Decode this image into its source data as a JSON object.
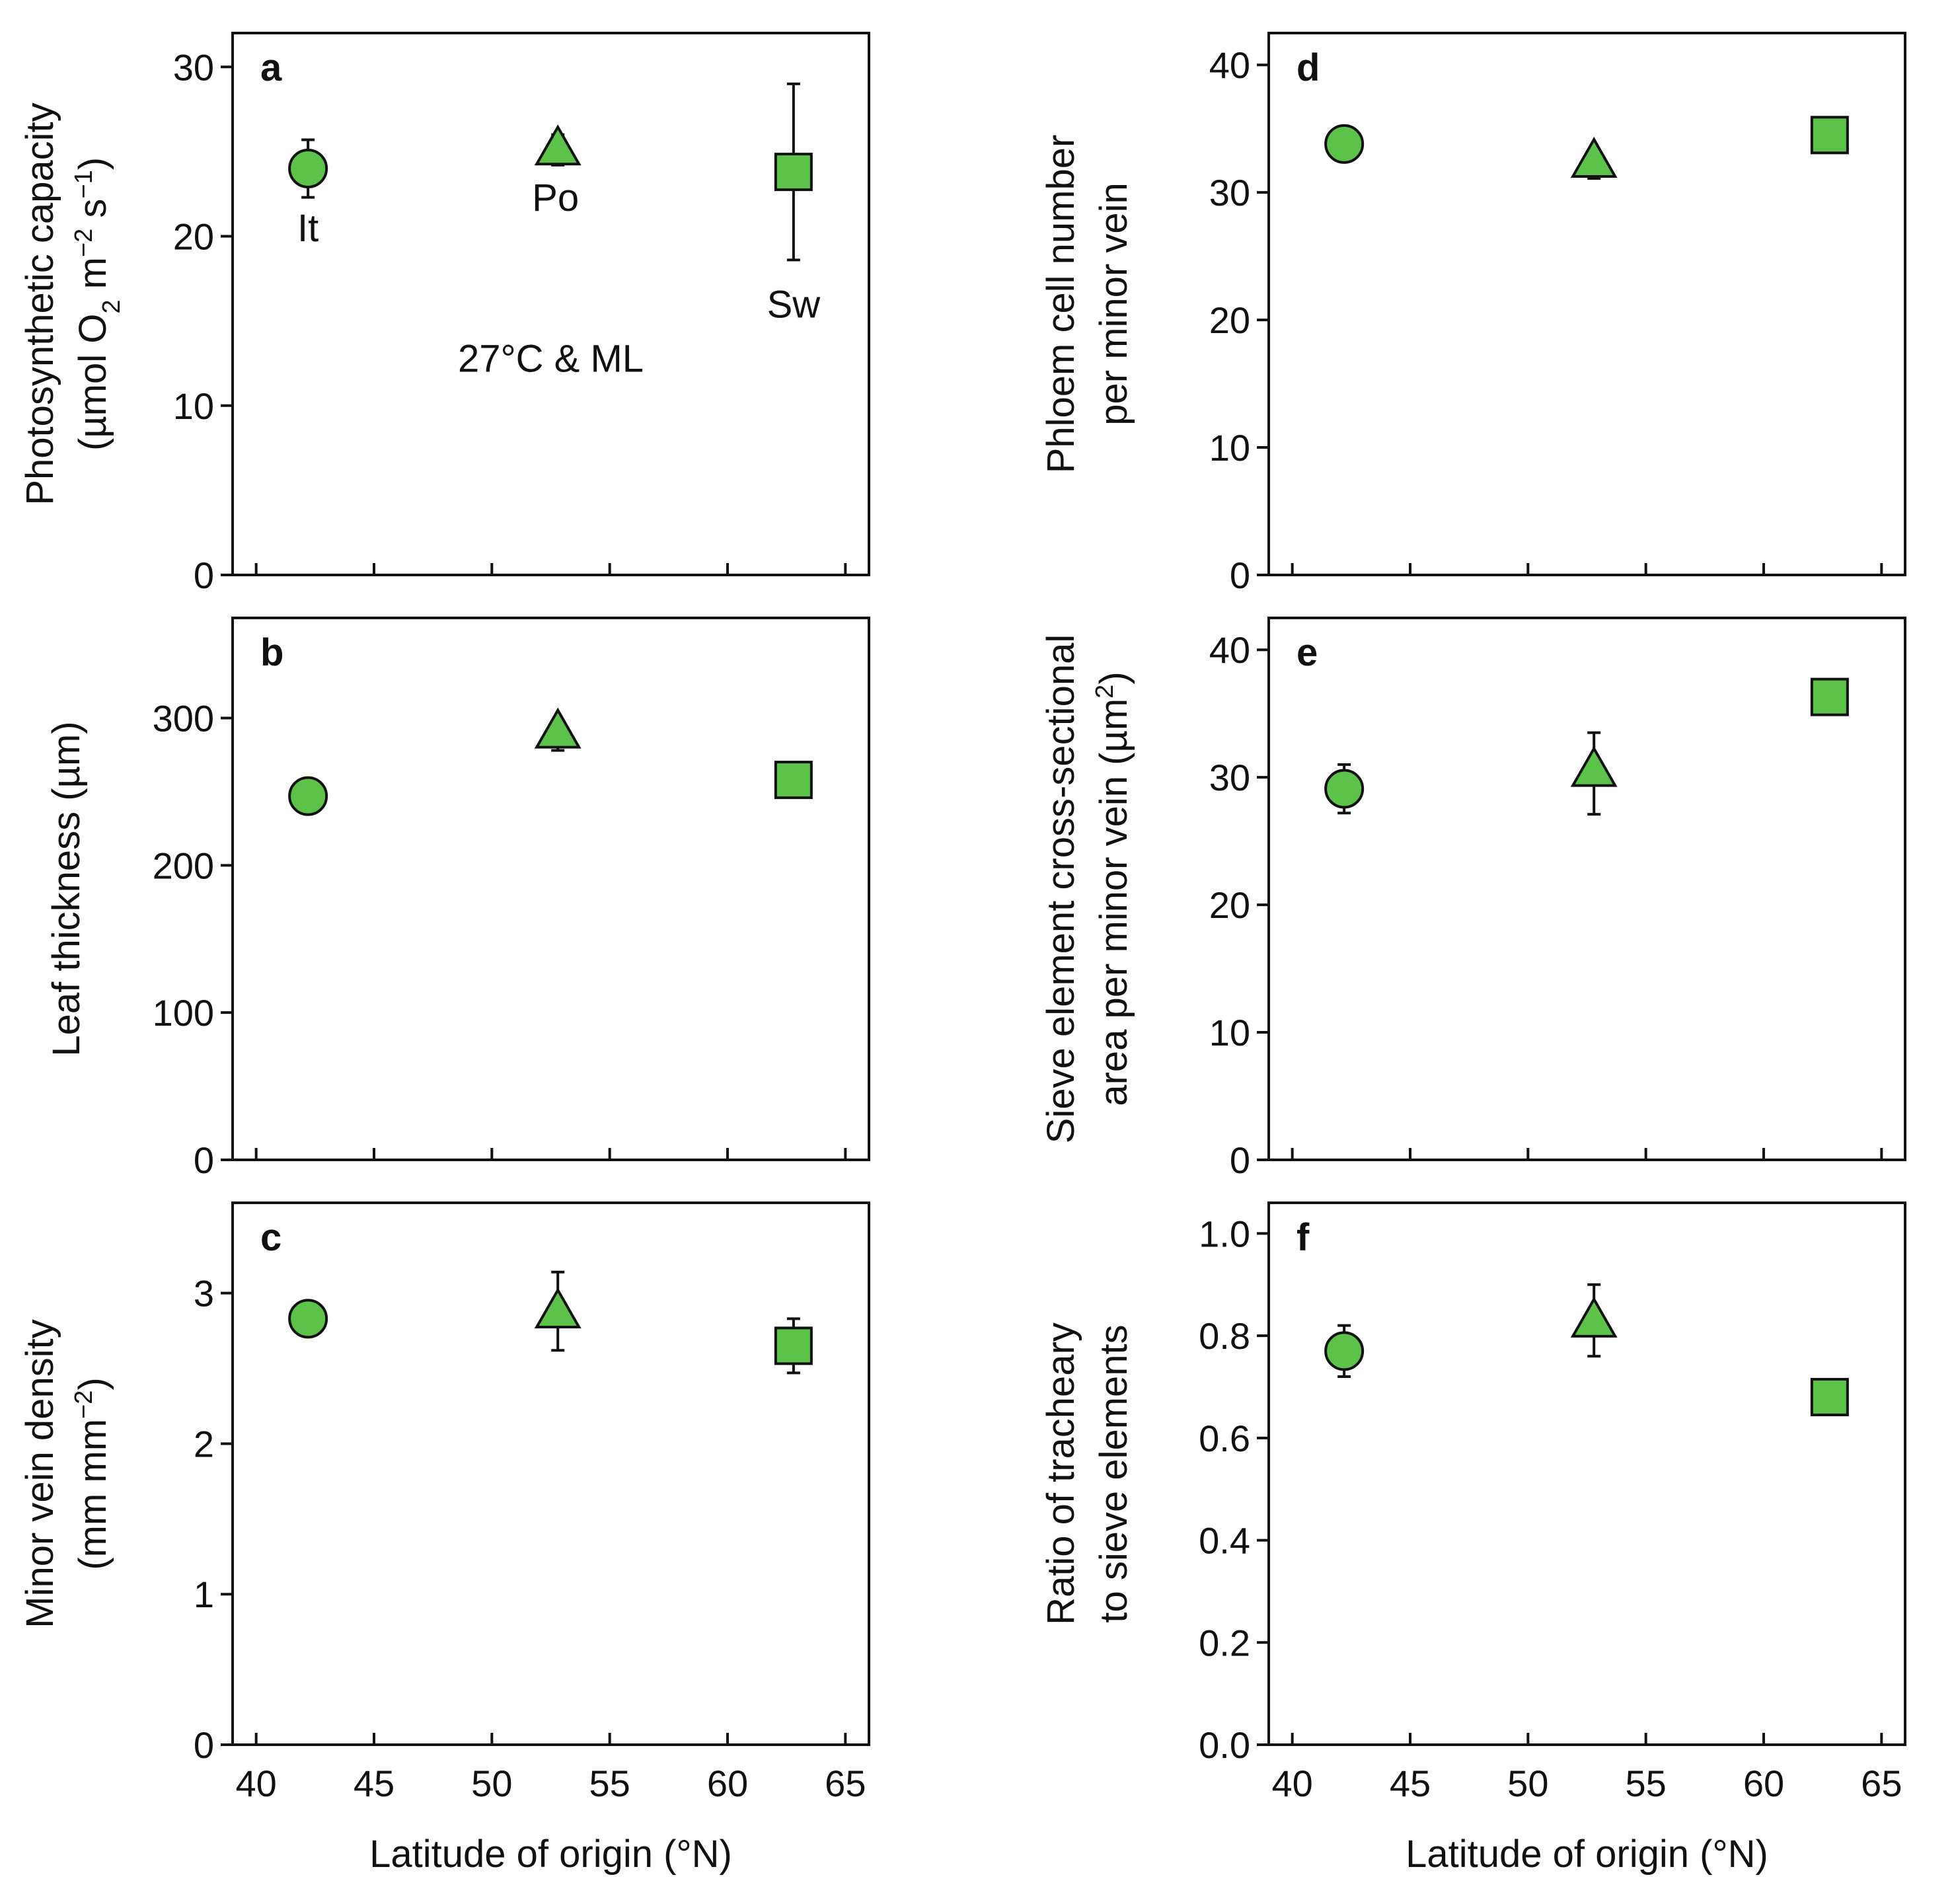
{
  "chart_data": [
    {
      "type": "scatter",
      "panel_letter": "a",
      "ylabel_lines": [
        {
          "parts": [
            {
              "t": "Photosynthetic capacity"
            }
          ]
        },
        {
          "parts": [
            {
              "t": "(µmol O"
            },
            {
              "t": "2",
              "sub": true
            },
            {
              "t": " m"
            },
            {
              "t": "−2",
              "sup": true
            },
            {
              "t": " s"
            },
            {
              "t": "−1",
              "sup": true
            },
            {
              "t": ")"
            }
          ]
        }
      ],
      "xlabel": "",
      "xlim": [
        39,
        66
      ],
      "ylim": [
        0,
        32
      ],
      "xticks": [
        40,
        45,
        50,
        55,
        60,
        65
      ],
      "show_xtick_labels": false,
      "yticks": [
        0,
        10,
        20,
        30
      ],
      "ytick_labels": [
        "0",
        "10",
        "20",
        "30"
      ],
      "series": [
        {
          "name": "It",
          "marker": "circle",
          "x": 42.2,
          "y": 24.0,
          "err_low": 22.3,
          "err_high": 25.7
        },
        {
          "name": "Po",
          "marker": "triangle",
          "x": 52.8,
          "y": 25.2,
          "err_low": 24.2,
          "err_high": 26.0
        },
        {
          "name": "Sw",
          "marker": "square",
          "x": 62.8,
          "y": 23.8,
          "err_low": 18.6,
          "err_high": 29.0
        }
      ],
      "point_labels": [
        {
          "text": "It",
          "x": 42.2,
          "y": 19.7
        },
        {
          "text": "Po",
          "x": 52.7,
          "y": 21.5
        },
        {
          "text": "Sw",
          "x": 62.8,
          "y": 15.2
        }
      ],
      "annotation": {
        "text": "27°C & ML",
        "x": 52.5,
        "y": 12.0
      }
    },
    {
      "type": "scatter",
      "panel_letter": "b",
      "ylabel_lines": [
        {
          "parts": [
            {
              "t": "Leaf thickness (µm)"
            }
          ]
        }
      ],
      "xlabel": "",
      "xlim": [
        39,
        66
      ],
      "ylim": [
        0,
        368
      ],
      "xticks": [
        40,
        45,
        50,
        55,
        60,
        65
      ],
      "show_xtick_labels": false,
      "yticks": [
        0,
        100,
        200,
        300
      ],
      "ytick_labels": [
        "0",
        "100",
        "200",
        "300"
      ],
      "series": [
        {
          "name": "It",
          "marker": "circle",
          "x": 42.2,
          "y": 247,
          "err_low": 247,
          "err_high": 247
        },
        {
          "name": "Po",
          "marker": "triangle",
          "x": 52.8,
          "y": 291,
          "err_low": 278,
          "err_high": 293
        },
        {
          "name": "Sw",
          "marker": "square",
          "x": 62.8,
          "y": 258,
          "err_low": 258,
          "err_high": 258
        }
      ]
    },
    {
      "type": "scatter",
      "panel_letter": "c",
      "ylabel_lines": [
        {
          "parts": [
            {
              "t": "Minor vein density"
            }
          ]
        },
        {
          "parts": [
            {
              "t": "(mm mm"
            },
            {
              "t": "−2",
              "sup": true
            },
            {
              "t": ")"
            }
          ]
        }
      ],
      "xlabel": "Latitude of origin (°N)",
      "xlim": [
        39,
        66
      ],
      "ylim": [
        0,
        3.6
      ],
      "xticks": [
        40,
        45,
        50,
        55,
        60,
        65
      ],
      "show_xtick_labels": true,
      "xtick_labels": [
        "40",
        "45",
        "50",
        "55",
        "60",
        "65"
      ],
      "yticks": [
        0,
        1,
        2,
        3
      ],
      "ytick_labels": [
        "0",
        "1",
        "2",
        "3"
      ],
      "series": [
        {
          "name": "It",
          "marker": "circle",
          "x": 42.2,
          "y": 2.83,
          "err_low": 2.83,
          "err_high": 2.83
        },
        {
          "name": "Po",
          "marker": "triangle",
          "x": 52.8,
          "y": 2.88,
          "err_low": 2.62,
          "err_high": 3.14
        },
        {
          "name": "Sw",
          "marker": "square",
          "x": 62.8,
          "y": 2.65,
          "err_low": 2.47,
          "err_high": 2.83
        }
      ]
    },
    {
      "type": "scatter",
      "panel_letter": "d",
      "ylabel_lines": [
        {
          "parts": [
            {
              "t": "Phloem cell number"
            }
          ]
        },
        {
          "parts": [
            {
              "t": "per minor vein"
            }
          ]
        }
      ],
      "xlabel": "",
      "xlim": [
        39,
        66
      ],
      "ylim": [
        0,
        42.5
      ],
      "xticks": [
        40,
        45,
        50,
        55,
        60,
        65
      ],
      "show_xtick_labels": false,
      "yticks": [
        0,
        10,
        20,
        30,
        40
      ],
      "ytick_labels": [
        "0",
        "10",
        "20",
        "30",
        "40"
      ],
      "series": [
        {
          "name": "It",
          "marker": "circle",
          "x": 42.2,
          "y": 33.8,
          "err_low": 33.8,
          "err_high": 33.8
        },
        {
          "name": "Po",
          "marker": "triangle",
          "x": 52.8,
          "y": 32.5,
          "err_low": 31.1,
          "err_high": 32.8
        },
        {
          "name": "Sw",
          "marker": "square",
          "x": 62.8,
          "y": 34.5,
          "err_low": 34.5,
          "err_high": 34.5
        }
      ]
    },
    {
      "type": "scatter",
      "panel_letter": "e",
      "ylabel_lines": [
        {
          "parts": [
            {
              "t": "Sieve element cross-sectional"
            }
          ]
        },
        {
          "parts": [
            {
              "t": "area per minor vein (µm"
            },
            {
              "t": "2",
              "sup": true
            },
            {
              "t": ")"
            }
          ]
        }
      ],
      "xlabel": "",
      "xlim": [
        39,
        66
      ],
      "ylim": [
        0,
        42.5
      ],
      "xticks": [
        40,
        45,
        50,
        55,
        60,
        65
      ],
      "show_xtick_labels": false,
      "yticks": [
        0,
        10,
        20,
        30,
        40
      ],
      "ytick_labels": [
        "0",
        "10",
        "20",
        "30",
        "40"
      ],
      "series": [
        {
          "name": "It",
          "marker": "circle",
          "x": 42.2,
          "y": 29.1,
          "err_low": 27.2,
          "err_high": 31.0
        },
        {
          "name": "Po",
          "marker": "triangle",
          "x": 52.8,
          "y": 30.6,
          "err_low": 27.1,
          "err_high": 33.5
        },
        {
          "name": "Sw",
          "marker": "square",
          "x": 62.8,
          "y": 36.3,
          "err_low": 36.3,
          "err_high": 36.3
        }
      ]
    },
    {
      "type": "scatter",
      "panel_letter": "f",
      "ylabel_lines": [
        {
          "parts": [
            {
              "t": "Ratio of tracheary"
            }
          ]
        },
        {
          "parts": [
            {
              "t": "to sieve elements"
            }
          ]
        }
      ],
      "xlabel": "Latitude of origin (°N)",
      "xlim": [
        39,
        66
      ],
      "ylim": [
        0,
        1.06
      ],
      "xticks": [
        40,
        45,
        50,
        55,
        60,
        65
      ],
      "show_xtick_labels": true,
      "xtick_labels": [
        "40",
        "45",
        "50",
        "55",
        "60",
        "65"
      ],
      "yticks": [
        0,
        0.2,
        0.4,
        0.6,
        0.8,
        1.0
      ],
      "ytick_labels": [
        "0.0",
        "0.2",
        "0.4",
        "0.6",
        "0.8",
        "1.0"
      ],
      "series": [
        {
          "name": "It",
          "marker": "circle",
          "x": 42.2,
          "y": 0.77,
          "err_low": 0.72,
          "err_high": 0.82
        },
        {
          "name": "Po",
          "marker": "triangle",
          "x": 52.8,
          "y": 0.83,
          "err_low": 0.76,
          "err_high": 0.9
        },
        {
          "name": "Sw",
          "marker": "square",
          "x": 62.8,
          "y": 0.68,
          "err_low": 0.68,
          "err_high": 0.68
        }
      ]
    }
  ],
  "colors": {
    "marker_fill": "#5cc24a",
    "stroke": "#111111"
  },
  "marker_size_data": null
}
